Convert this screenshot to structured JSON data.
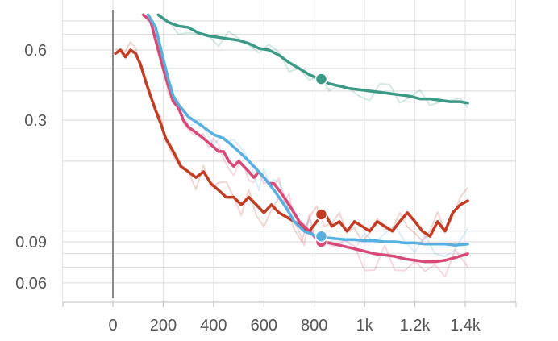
{
  "colors": {
    "teal": "#3a9a86",
    "orange_red": "#c23b22",
    "pink": "#d94876",
    "light_blue": "#56b0e2"
  },
  "chart_data": {
    "type": "line",
    "y_scale": "log",
    "grid": true,
    "legend": "none",
    "xlim": [
      -200,
      1600
    ],
    "ylim": [
      0.05,
      0.85
    ],
    "x_ticks": [
      {
        "value": 0,
        "label": "0"
      },
      {
        "value": 200,
        "label": "200"
      },
      {
        "value": 400,
        "label": "400"
      },
      {
        "value": 600,
        "label": "600"
      },
      {
        "value": 800,
        "label": "800"
      },
      {
        "value": 1000,
        "label": "1k"
      },
      {
        "value": 1200,
        "label": "1.2k"
      },
      {
        "value": 1400,
        "label": "1.4k"
      }
    ],
    "y_ticks": [
      {
        "value": 0.6,
        "label": "0.6"
      },
      {
        "value": 0.3,
        "label": "0.3"
      },
      {
        "value": 0.09,
        "label": "0.09"
      },
      {
        "value": 0.06,
        "label": "0.06"
      }
    ],
    "y_minor_gridlines": [
      0.07,
      0.08,
      0.1,
      0.2,
      0.4,
      0.5,
      0.7,
      0.8
    ],
    "series": [
      {
        "color": "#3a9a86",
        "x": [
          180,
          220,
          260,
          300,
          340,
          380,
          420,
          460,
          500,
          540,
          580,
          620,
          660,
          700,
          740,
          780,
          820,
          860,
          900,
          940,
          980,
          1020,
          1060,
          1100,
          1140,
          1180,
          1220,
          1260,
          1300,
          1340,
          1380,
          1410
        ],
        "y": [
          0.85,
          0.79,
          0.76,
          0.75,
          0.71,
          0.69,
          0.68,
          0.67,
          0.66,
          0.64,
          0.61,
          0.6,
          0.57,
          0.53,
          0.5,
          0.47,
          0.45,
          0.43,
          0.42,
          0.41,
          0.405,
          0.4,
          0.395,
          0.39,
          0.385,
          0.38,
          0.37,
          0.37,
          0.365,
          0.36,
          0.36,
          0.355
        ],
        "marker": {
          "x": 828,
          "y": 0.45
        }
      },
      {
        "color": "#c23b22",
        "x": [
          10,
          30,
          50,
          70,
          90,
          110,
          130,
          150,
          170,
          190,
          210,
          240,
          270,
          300,
          330,
          360,
          390,
          420,
          450,
          480,
          510,
          540,
          570,
          600,
          630,
          660,
          690,
          720,
          750,
          780,
          810,
          840,
          870,
          900,
          930,
          960,
          990,
          1020,
          1050,
          1080,
          1110,
          1140,
          1170,
          1200,
          1230,
          1260,
          1290,
          1320,
          1350,
          1380,
          1410
        ],
        "y": [
          0.58,
          0.6,
          0.56,
          0.6,
          0.58,
          0.52,
          0.44,
          0.38,
          0.33,
          0.29,
          0.25,
          0.22,
          0.19,
          0.18,
          0.17,
          0.18,
          0.16,
          0.15,
          0.14,
          0.14,
          0.13,
          0.14,
          0.13,
          0.12,
          0.13,
          0.12,
          0.115,
          0.11,
          0.105,
          0.1,
          0.11,
          0.12,
          0.105,
          0.11,
          0.1,
          0.11,
          0.105,
          0.1,
          0.11,
          0.105,
          0.1,
          0.11,
          0.12,
          0.11,
          0.1,
          0.095,
          0.11,
          0.1,
          0.12,
          0.13,
          0.135
        ],
        "marker": {
          "x": 828,
          "y": 0.118
        }
      },
      {
        "color": "#d94876",
        "x": [
          120,
          150,
          180,
          200,
          220,
          240,
          260,
          280,
          300,
          320,
          340,
          360,
          380,
          400,
          420,
          440,
          460,
          480,
          500,
          520,
          540,
          560,
          580,
          600,
          620,
          640,
          660,
          680,
          700,
          720,
          740,
          760,
          780,
          800,
          840,
          880,
          920,
          960,
          1000,
          1040,
          1080,
          1120,
          1160,
          1200,
          1240,
          1280,
          1320,
          1360,
          1410
        ],
        "y": [
          0.85,
          0.8,
          0.6,
          0.5,
          0.42,
          0.36,
          0.34,
          0.3,
          0.28,
          0.27,
          0.26,
          0.25,
          0.24,
          0.23,
          0.22,
          0.22,
          0.2,
          0.19,
          0.2,
          0.19,
          0.18,
          0.17,
          0.18,
          0.17,
          0.16,
          0.16,
          0.15,
          0.14,
          0.13,
          0.12,
          0.11,
          0.105,
          0.1,
          0.095,
          0.09,
          0.088,
          0.086,
          0.084,
          0.082,
          0.08,
          0.079,
          0.078,
          0.076,
          0.075,
          0.074,
          0.074,
          0.075,
          0.077,
          0.08
        ],
        "marker": {
          "x": 828,
          "y": 0.09
        }
      },
      {
        "color": "#56b0e2",
        "x": [
          140,
          170,
          200,
          220,
          240,
          260,
          280,
          300,
          320,
          340,
          360,
          380,
          400,
          420,
          440,
          460,
          480,
          500,
          520,
          540,
          560,
          580,
          600,
          620,
          640,
          660,
          680,
          700,
          720,
          740,
          760,
          780,
          800,
          840,
          880,
          920,
          960,
          1000,
          1040,
          1080,
          1120,
          1160,
          1200,
          1240,
          1280,
          1320,
          1360,
          1410
        ],
        "y": [
          0.85,
          0.75,
          0.55,
          0.45,
          0.38,
          0.35,
          0.33,
          0.31,
          0.3,
          0.29,
          0.28,
          0.27,
          0.26,
          0.255,
          0.25,
          0.24,
          0.23,
          0.22,
          0.21,
          0.2,
          0.19,
          0.18,
          0.17,
          0.16,
          0.15,
          0.14,
          0.13,
          0.12,
          0.11,
          0.105,
          0.1,
          0.098,
          0.096,
          0.094,
          0.093,
          0.092,
          0.092,
          0.091,
          0.091,
          0.09,
          0.09,
          0.089,
          0.089,
          0.088,
          0.088,
          0.088,
          0.087,
          0.088
        ],
        "marker": {
          "x": 828,
          "y": 0.095
        }
      }
    ]
  }
}
